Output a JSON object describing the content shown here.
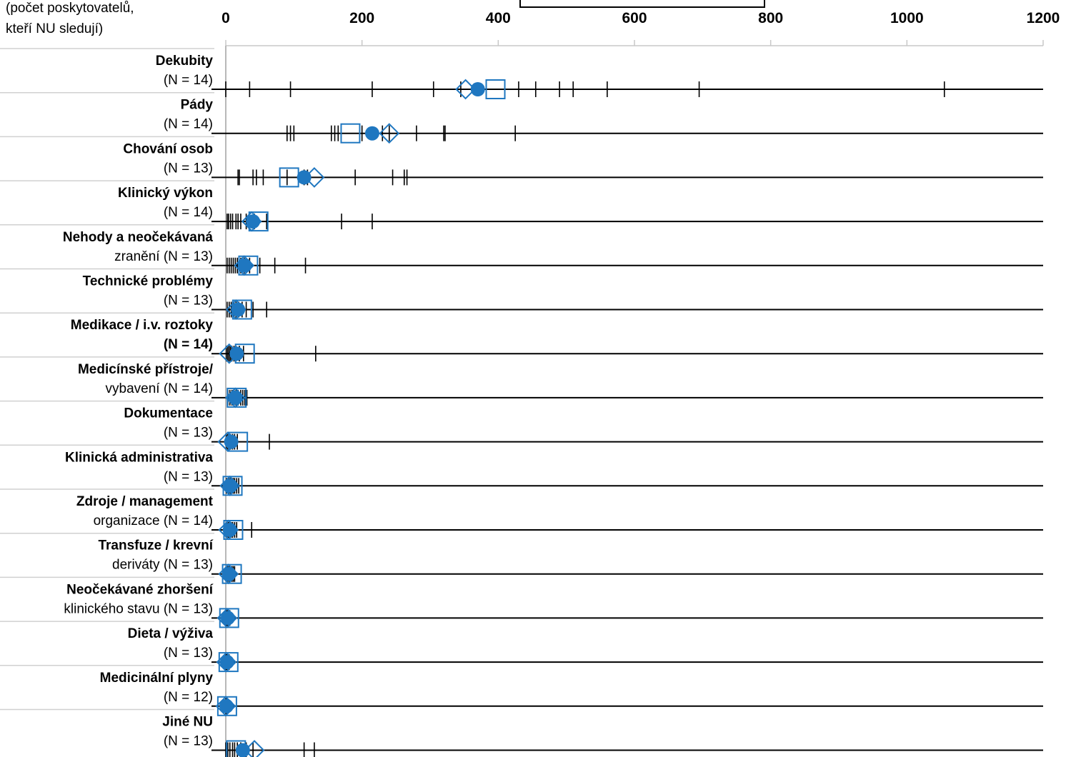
{
  "corner_label": {
    "line1": "(počet poskytovatelů,",
    "line2": "kteří NU sledují)"
  },
  "chart_data": {
    "type": "scatter",
    "x_ticks": [
      0,
      200,
      400,
      600,
      800,
      1000,
      1200
    ],
    "xlim": [
      0,
      1200
    ],
    "grid": false,
    "legend": "top (partially cropped)",
    "colors": {
      "mean_median": "#1f77c0",
      "observations": "#000000"
    },
    "categories": [
      {
        "bold": "Dekubity",
        "normal": "(N = 14)",
        "line1": "Dekubity",
        "line2": "(N = 14)",
        "points": [
          0,
          35,
          95,
          215,
          305,
          345,
          430,
          455,
          490,
          510,
          560,
          695,
          1055
        ],
        "mean": 370,
        "median": 352,
        "box": 396
      },
      {
        "bold": "Pády",
        "normal": "(N = 14)",
        "line1": "Pády",
        "line2": "(N = 14)",
        "points": [
          90,
          95,
          100,
          155,
          160,
          165,
          200,
          230,
          240,
          280,
          320,
          322,
          425
        ],
        "mean": 215,
        "median": 240,
        "box": 183
      },
      {
        "bold": "Chování osob",
        "normal": "(N = 13)",
        "line1": "Chování osob",
        "line2": "(N = 13)",
        "points": [
          18,
          20,
          40,
          45,
          55,
          90,
          115,
          120,
          190,
          245,
          262,
          266
        ],
        "mean": 115,
        "median": 130,
        "box": 93
      },
      {
        "bold": "Klinický výkon",
        "normal": "(N = 14)",
        "line1": "Klinický výkon",
        "line2": "(N = 14)",
        "points": [
          2,
          4,
          7,
          10,
          15,
          18,
          22,
          30,
          42,
          60,
          170,
          215
        ],
        "mean": 40,
        "median": 38,
        "box": 48
      },
      {
        "bold": "Nehody a neočekávaná zranění",
        "normal": "(N = 13)",
        "line1": "Nehody a neočekávaná",
        "line2": "zranění (N = 13)",
        "points": [
          2,
          5,
          8,
          11,
          14,
          17,
          22,
          27,
          35,
          50,
          72,
          117
        ],
        "mean": 28,
        "median": 27,
        "box": 33
      },
      {
        "bold": "Technické problémy",
        "normal": "(N = 13)",
        "line1": "Technické problémy",
        "line2": "(N = 13)",
        "points": [
          2,
          5,
          8,
          12,
          15,
          19,
          24,
          30,
          40,
          60
        ],
        "mean": 18,
        "median": 15,
        "box": 24
      },
      {
        "bold": "Medikace / i.v. roztoky (N = 14)",
        "normal": "",
        "line1": "Medikace / i.v. roztoky",
        "line2": "(N = 14)",
        "points": [
          1,
          3,
          5,
          7,
          9,
          12,
          15,
          20,
          26,
          132
        ],
        "mean": 16,
        "median": 5,
        "box": 28
      },
      {
        "bold": "Medicínské přístroje/ vybavení",
        "normal": "(N = 14)",
        "line1": "Medicínské přístroje/",
        "line2": "vybavení (N = 14)",
        "points": [
          3,
          6,
          9,
          12,
          15,
          18,
          22,
          25,
          28,
          31
        ],
        "mean": 14,
        "median": 14,
        "box": 16
      },
      {
        "bold": "Dokumentace",
        "normal": "(N = 13)",
        "line1": "Dokumentace",
        "line2": "(N = 13)",
        "points": [
          1,
          3,
          5,
          7,
          10,
          13,
          17,
          64
        ],
        "mean": 8,
        "median": 3,
        "box": 18
      },
      {
        "bold": "Klinická administrativa",
        "normal": "(N = 13)",
        "line1": "Klinická administrativa",
        "line2": "(N = 13)",
        "points": [
          1,
          3,
          5,
          7,
          9,
          11,
          13,
          16,
          19
        ],
        "mean": 7,
        "median": 6,
        "box": 10
      },
      {
        "bold": "Zdroje / management organizace",
        "normal": "(N = 14)",
        "line1": "Zdroje / management",
        "line2": "organizace (N = 14)",
        "points": [
          1,
          2,
          4,
          6,
          8,
          10,
          13,
          16,
          38
        ],
        "mean": 6,
        "median": 4,
        "box": 11
      },
      {
        "bold": "Transfuze / krevní deriváty",
        "normal": "(N = 13)",
        "line1": "Transfuze / krevní",
        "line2": "deriváty (N = 13)",
        "points": [
          1,
          2,
          3,
          5,
          7,
          9,
          11,
          13
        ],
        "mean": 5,
        "median": 4,
        "box": 9
      },
      {
        "bold": "Neočekávané zhoršení klinického stavu",
        "normal": "(N = 13)",
        "line1": "Neočekávané zhoršení",
        "line2": "klinického stavu (N = 13)",
        "points": [
          0,
          1,
          2,
          3,
          4,
          5,
          6
        ],
        "mean": 3,
        "median": 2,
        "box": 5
      },
      {
        "bold": "Dieta / výživa",
        "normal": "(N = 13)",
        "line1": "Dieta / výživa",
        "line2": "(N = 13)",
        "points": [
          0,
          1,
          2,
          3,
          4,
          5
        ],
        "mean": 2,
        "median": 1,
        "box": 4
      },
      {
        "bold": "Medicinální plyny",
        "normal": "(N = 12)",
        "line1": "Medicinální plyny",
        "line2": "(N = 12)",
        "points": [
          0,
          1,
          2
        ],
        "mean": 1,
        "median": 0,
        "box": 2
      },
      {
        "bold": "Jiné NU",
        "normal": "(N = 13)",
        "line1": "Jiné NU",
        "line2": "(N = 13)",
        "points": [
          0,
          3,
          6,
          10,
          13,
          17,
          22,
          30,
          40,
          115,
          130
        ],
        "mean": 25,
        "median": 42,
        "box": 15
      }
    ]
  }
}
